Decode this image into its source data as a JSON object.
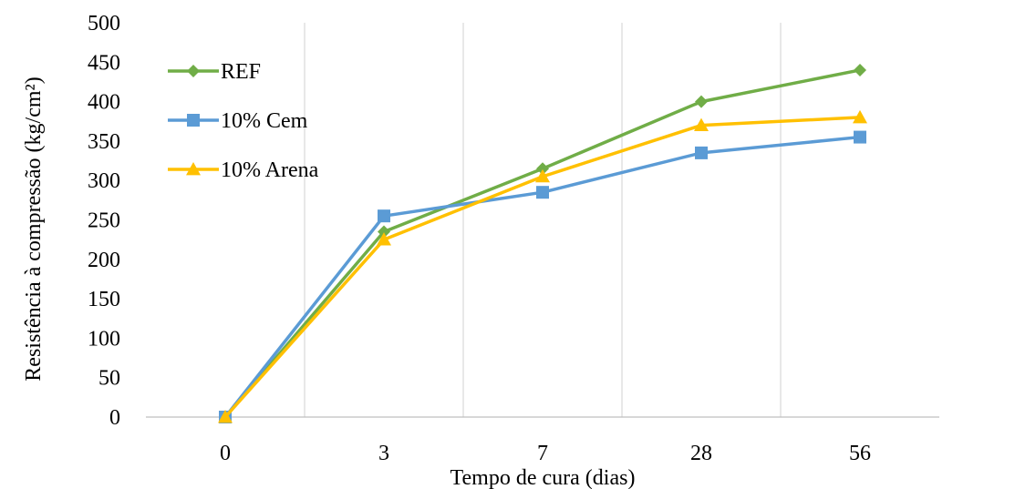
{
  "chart_data": {
    "type": "line",
    "categories": [
      "0",
      "3",
      "7",
      "28",
      "56"
    ],
    "series": [
      {
        "name": "REF",
        "values": [
          0,
          235,
          315,
          400,
          440
        ],
        "color": "#70ad47",
        "marker": "diamond"
      },
      {
        "name": "10% Cem",
        "values": [
          0,
          255,
          285,
          335,
          355
        ],
        "color": "#5b9bd5",
        "marker": "square"
      },
      {
        "name": "10% Arena",
        "values": [
          0,
          225,
          305,
          370,
          380
        ],
        "color": "#ffc000",
        "marker": "triangle"
      }
    ],
    "xlabel": "Tempo de cura (dias)",
    "ylabel": "Resistência à compressão (kg/cm²)",
    "ylim": [
      0,
      500
    ],
    "ytick_step": 50,
    "grid": "vertical",
    "legend": "top-left"
  }
}
